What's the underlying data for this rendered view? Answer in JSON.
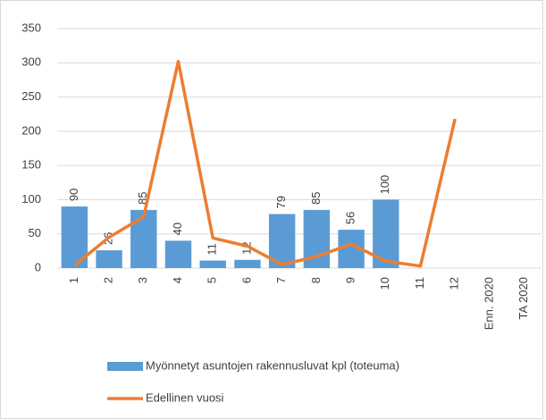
{
  "chart_data": {
    "type": "bar",
    "categories": [
      "1",
      "2",
      "3",
      "4",
      "5",
      "6",
      "7",
      "8",
      "9",
      "10",
      "11",
      "12",
      "Enn. 2020",
      "TA 2020"
    ],
    "series": [
      {
        "name": "Myönnetyt asuntojen rakennusluvat kpl (toteuma)",
        "type": "bar",
        "color": "#5b9bd5",
        "values": [
          90,
          26,
          85,
          40,
          11,
          12,
          79,
          85,
          56,
          100,
          null,
          null,
          null,
          null
        ]
      },
      {
        "name": "Edellinen vuosi",
        "type": "line",
        "color": "#ed7d31",
        "values": [
          4,
          45,
          75,
          302,
          44,
          32,
          5,
          17,
          35,
          10,
          3,
          218,
          null,
          null
        ]
      }
    ],
    "ylim": [
      0,
      350
    ],
    "yticks": [
      0,
      50,
      100,
      150,
      200,
      250,
      300,
      350
    ],
    "grid": true,
    "legend": "bottom"
  }
}
